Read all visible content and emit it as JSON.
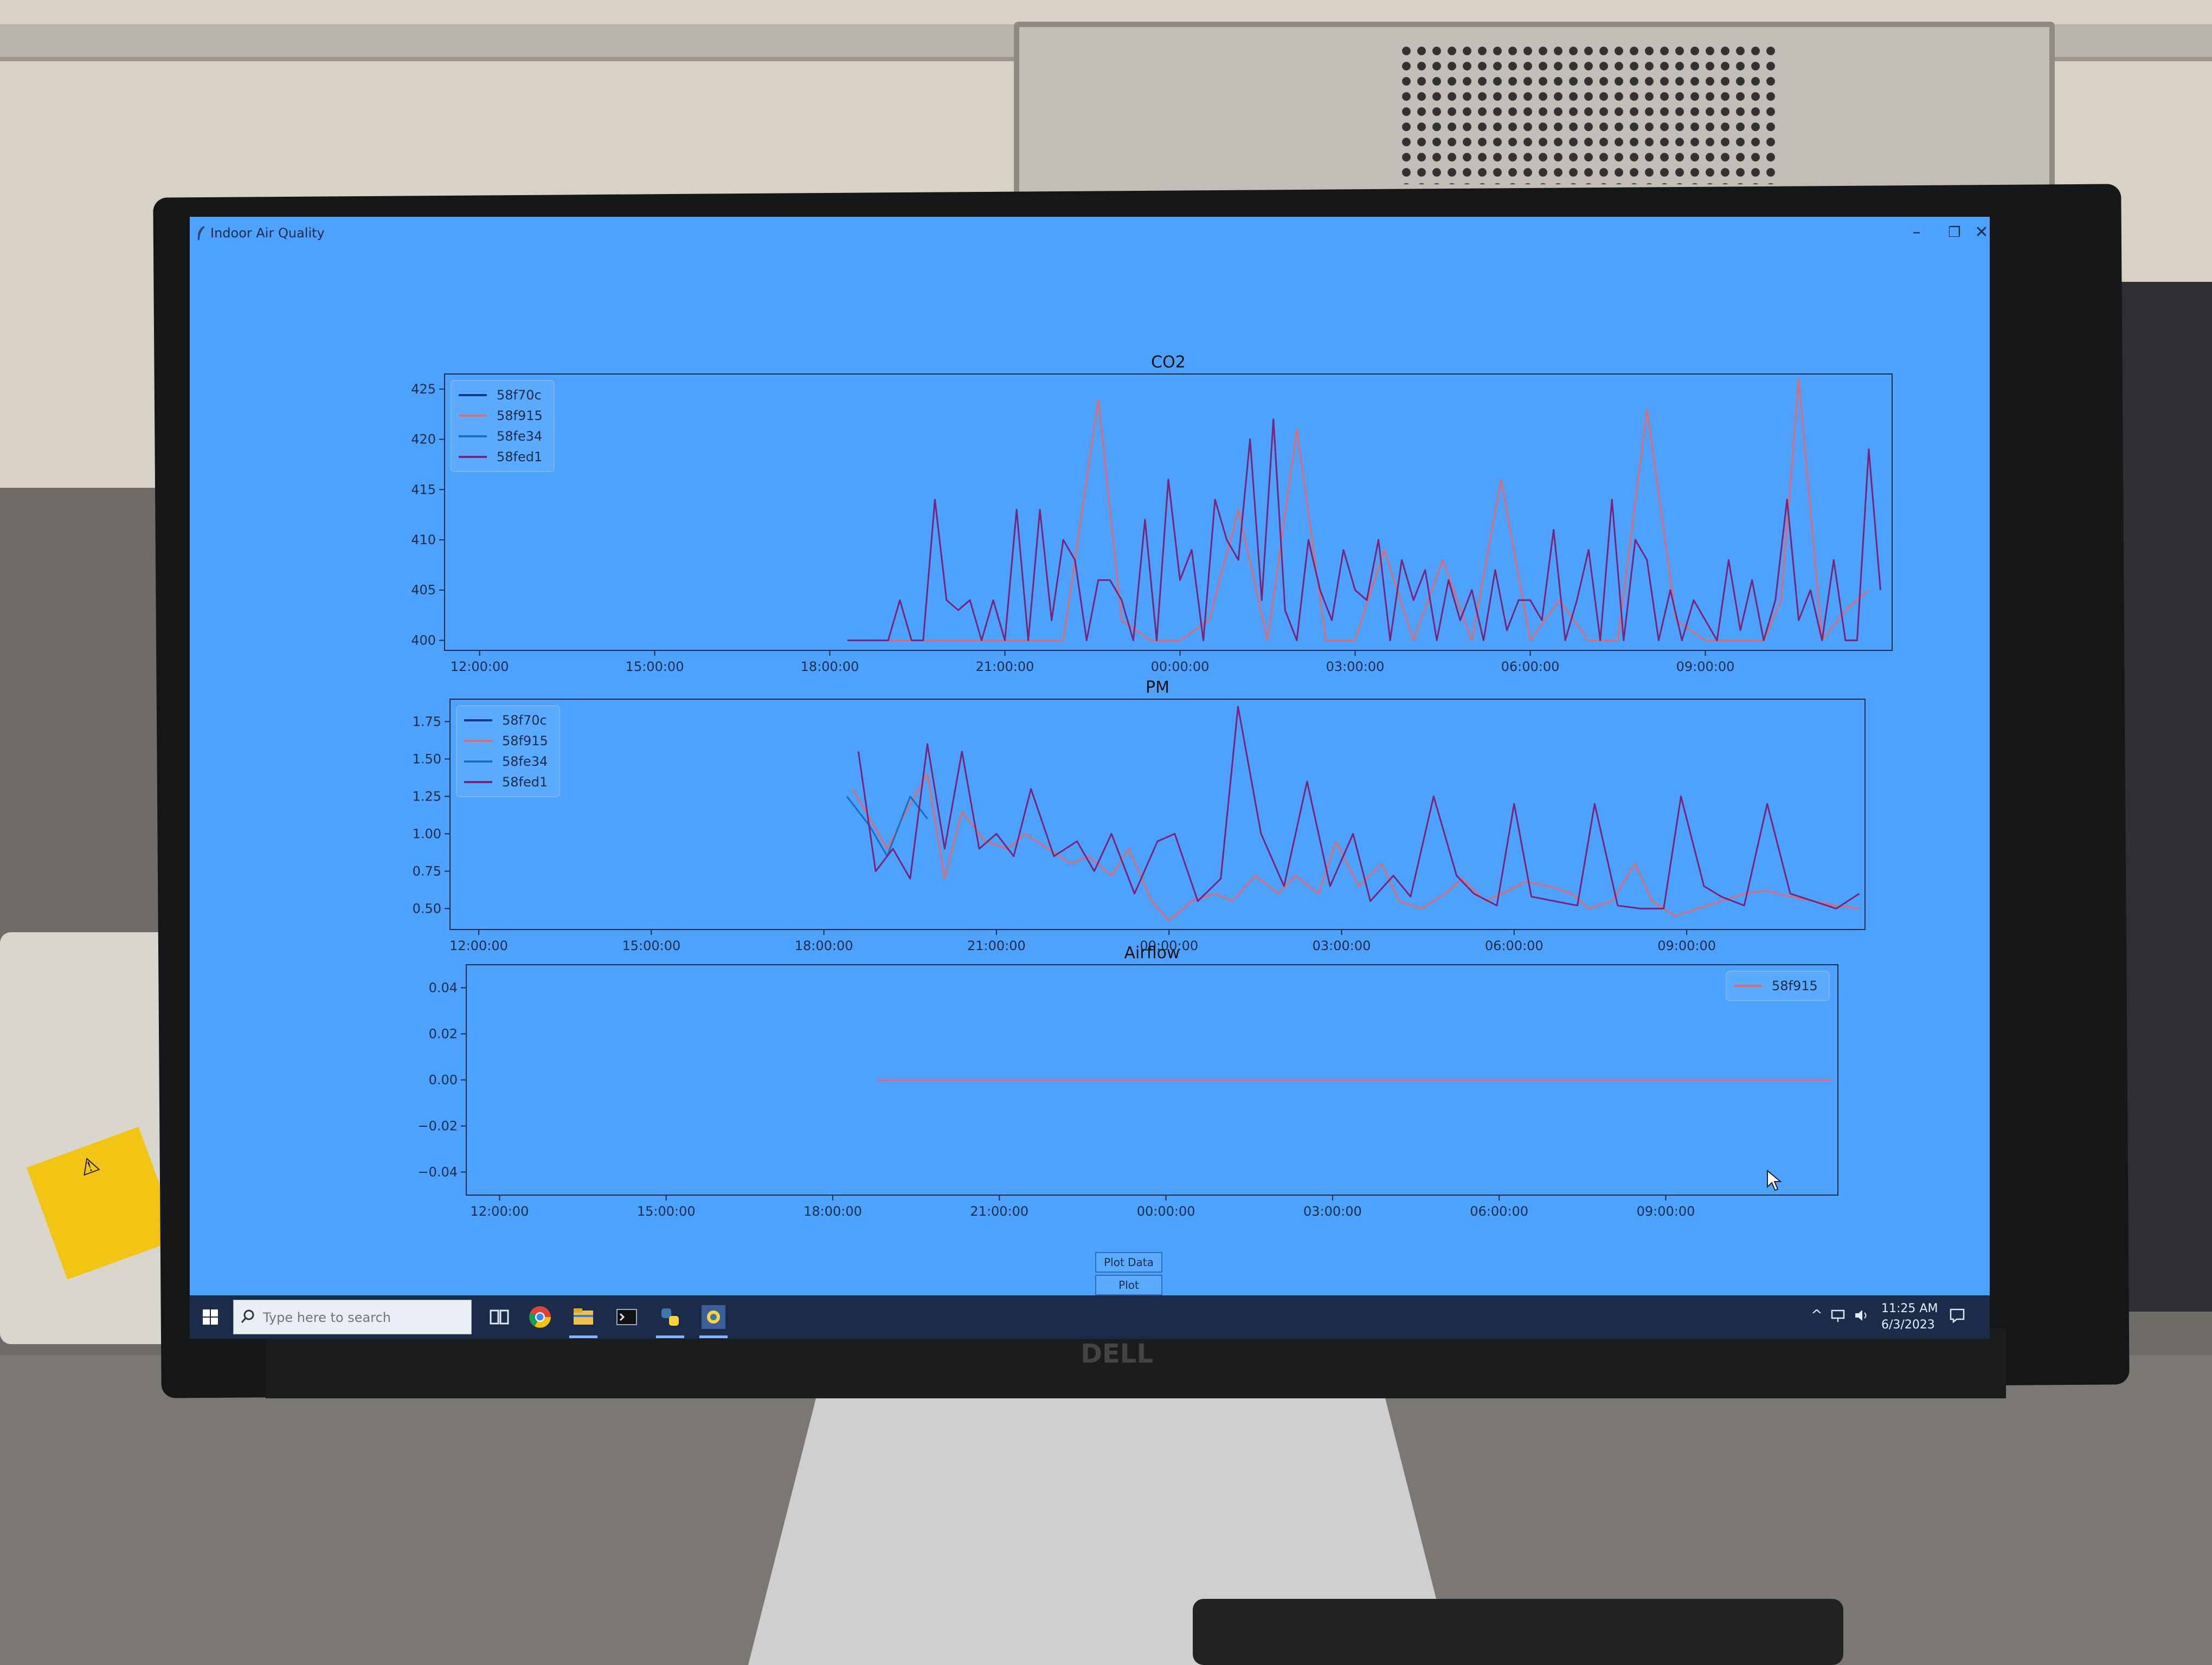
{
  "window": {
    "title": "Indoor Air Quality"
  },
  "buttons": {
    "plot_data": "Plot Data",
    "plot_example": "Plot Example"
  },
  "taskbar": {
    "search_placeholder": "Type here to search",
    "time": "11:25 AM",
    "date": "6/3/2023"
  },
  "colors": {
    "screen_bg": "#4da2ff",
    "58f70c": "#123a8c",
    "58f915": "#e06a72",
    "58fe34": "#1670b8",
    "58fed1": "#7a2478"
  },
  "chart_data": [
    {
      "type": "line",
      "title": "CO2",
      "legend_position": "top-left",
      "x_ticks": [
        "12:00:00",
        "15:00:00",
        "18:00:00",
        "21:00:00",
        "00:00:00",
        "03:00:00",
        "06:00:00",
        "09:00:00"
      ],
      "x_tick_hours": [
        0,
        3,
        6,
        9,
        12,
        15,
        18,
        21
      ],
      "xlim": [
        -0.6,
        24.2
      ],
      "yticks": [
        400,
        405,
        410,
        415,
        420,
        425
      ],
      "ylim": [
        399,
        426.5
      ],
      "series": [
        {
          "name": "58f70c",
          "x": [],
          "y": []
        },
        {
          "name": "58f915",
          "x": [
            6.3,
            7.0,
            7.5,
            8.0,
            8.5,
            9.0,
            9.5,
            10.0,
            10.6,
            11.0,
            11.5,
            12.0,
            12.5,
            13.0,
            13.5,
            14.0,
            14.5,
            15.0,
            15.5,
            16.0,
            16.5,
            17.0,
            17.5,
            18.0,
            18.5,
            19.0,
            19.5,
            20.0,
            20.5,
            21.0,
            21.5,
            22.0,
            22.3,
            22.6,
            23.0,
            23.4,
            23.8
          ],
          "y": [
            400,
            400,
            400,
            400,
            400,
            400,
            400,
            400,
            424,
            402,
            400,
            400,
            402,
            413,
            400,
            421,
            400,
            400,
            409,
            400,
            408,
            400,
            416,
            400,
            404,
            400,
            400,
            423,
            402,
            400,
            400,
            400,
            404,
            426,
            400,
            403,
            405
          ]
        },
        {
          "name": "58fe34",
          "x": [],
          "y": []
        },
        {
          "name": "58fed1",
          "x": [
            6.3,
            6.8,
            7.0,
            7.2,
            7.4,
            7.6,
            7.8,
            8.0,
            8.2,
            8.4,
            8.6,
            8.8,
            9.0,
            9.2,
            9.4,
            9.6,
            9.8,
            10.0,
            10.2,
            10.4,
            10.6,
            10.8,
            11.0,
            11.2,
            11.4,
            11.6,
            11.8,
            12.0,
            12.2,
            12.4,
            12.6,
            12.8,
            13.0,
            13.2,
            13.4,
            13.6,
            13.8,
            14.0,
            14.2,
            14.4,
            14.6,
            14.8,
            15.0,
            15.2,
            15.4,
            15.6,
            15.8,
            16.0,
            16.2,
            16.4,
            16.6,
            16.8,
            17.0,
            17.2,
            17.4,
            17.6,
            17.8,
            18.0,
            18.2,
            18.4,
            18.6,
            18.8,
            19.0,
            19.2,
            19.4,
            19.6,
            19.8,
            20.0,
            20.2,
            20.4,
            20.6,
            20.8,
            21.0,
            21.2,
            21.4,
            21.6,
            21.8,
            22.0,
            22.2,
            22.4,
            22.6,
            22.8,
            23.0,
            23.2,
            23.4,
            23.6,
            23.8,
            24.0
          ],
          "y": [
            400,
            400,
            400,
            404,
            400,
            400,
            414,
            404,
            403,
            404,
            400,
            404,
            400,
            413,
            400,
            413,
            402,
            410,
            408,
            400,
            406,
            406,
            404,
            400,
            412,
            400,
            416,
            406,
            409,
            400,
            414,
            410,
            408,
            420,
            404,
            422,
            403,
            400,
            410,
            405,
            402,
            409,
            405,
            404,
            410,
            400,
            408,
            404,
            407,
            400,
            406,
            402,
            405,
            400,
            407,
            401,
            404,
            404,
            402,
            411,
            400,
            404,
            409,
            400,
            414,
            400,
            410,
            408,
            400,
            405,
            400,
            404,
            402,
            400,
            408,
            401,
            406,
            400,
            404,
            414,
            402,
            405,
            400,
            408,
            400,
            400,
            419,
            405
          ]
        }
      ]
    },
    {
      "type": "line",
      "title": "PM",
      "legend_position": "top-left",
      "x_ticks": [
        "12:00:00",
        "15:00:00",
        "18:00:00",
        "21:00:00",
        "00:00:00",
        "03:00:00",
        "06:00:00",
        "09:00:00"
      ],
      "x_tick_hours": [
        0,
        3,
        6,
        9,
        12,
        15,
        18,
        21
      ],
      "xlim": [
        -0.5,
        24.1
      ],
      "yticks": [
        0.5,
        0.75,
        1.0,
        1.25,
        1.5,
        1.75
      ],
      "ylim": [
        0.36,
        1.9
      ],
      "series": [
        {
          "name": "58f70c",
          "x": [],
          "y": []
        },
        {
          "name": "58f915",
          "x": [
            6.5,
            6.8,
            7.1,
            7.5,
            7.8,
            8.1,
            8.4,
            8.8,
            9.2,
            9.5,
            9.9,
            10.3,
            10.6,
            11.0,
            11.3,
            11.7,
            12.0,
            12.4,
            12.8,
            13.1,
            13.5,
            13.9,
            14.2,
            14.6,
            14.9,
            15.3,
            15.7,
            16.0,
            16.4,
            16.8,
            17.1,
            17.5,
            17.9,
            18.2,
            18.6,
            19.0,
            19.3,
            19.7,
            20.1,
            20.4,
            20.8,
            21.2,
            21.6,
            22.0,
            22.4,
            22.8,
            23.2,
            23.6,
            24.0
          ],
          "y": [
            1.3,
            1.1,
            0.9,
            1.2,
            1.4,
            0.7,
            1.15,
            0.95,
            0.9,
            1.0,
            0.9,
            0.8,
            0.85,
            0.72,
            0.9,
            0.55,
            0.42,
            0.55,
            0.6,
            0.55,
            0.72,
            0.6,
            0.72,
            0.6,
            0.95,
            0.65,
            0.8,
            0.55,
            0.5,
            0.6,
            0.7,
            0.55,
            0.62,
            0.68,
            0.65,
            0.6,
            0.5,
            0.55,
            0.8,
            0.55,
            0.45,
            0.5,
            0.55,
            0.6,
            0.62,
            0.58,
            0.55,
            0.52,
            0.5
          ]
        },
        {
          "name": "58fe34",
          "x": [
            6.4,
            6.8,
            7.1,
            7.5,
            7.8
          ],
          "y": [
            1.25,
            1.05,
            0.85,
            1.25,
            1.1
          ]
        },
        {
          "name": "58fed1",
          "x": [
            6.6,
            6.9,
            7.2,
            7.5,
            7.8,
            8.1,
            8.4,
            8.7,
            9.0,
            9.3,
            9.6,
            10.0,
            10.4,
            10.7,
            11.0,
            11.4,
            11.8,
            12.1,
            12.5,
            12.9,
            13.2,
            13.6,
            14.0,
            14.4,
            14.8,
            15.2,
            15.5,
            15.9,
            16.2,
            16.6,
            17.0,
            17.3,
            17.7,
            18.0,
            18.3,
            18.7,
            19.1,
            19.4,
            19.8,
            20.2,
            20.6,
            20.9,
            21.3,
            21.6,
            22.0,
            22.4,
            22.8,
            23.2,
            23.6,
            24.0
          ],
          "y": [
            1.55,
            0.75,
            0.9,
            0.7,
            1.6,
            0.9,
            1.55,
            0.9,
            1.0,
            0.85,
            1.3,
            0.85,
            0.95,
            0.75,
            1.0,
            0.6,
            0.95,
            1.0,
            0.55,
            0.7,
            1.85,
            1.0,
            0.65,
            1.35,
            0.65,
            1.0,
            0.55,
            0.72,
            0.58,
            1.25,
            0.72,
            0.6,
            0.52,
            1.2,
            0.58,
            0.55,
            0.52,
            1.2,
            0.52,
            0.5,
            0.5,
            1.25,
            0.65,
            0.58,
            0.52,
            1.2,
            0.6,
            0.55,
            0.5,
            0.6
          ]
        }
      ]
    },
    {
      "type": "line",
      "title": "Airflow",
      "legend_position": "top-right",
      "x_ticks": [
        "12:00:00",
        "15:00:00",
        "18:00:00",
        "21:00:00",
        "00:00:00",
        "03:00:00",
        "06:00:00",
        "09:00:00"
      ],
      "x_tick_hours": [
        0,
        3,
        6,
        9,
        12,
        15,
        18,
        21
      ],
      "xlim": [
        -0.6,
        24.1
      ],
      "yticks": [
        -0.04,
        -0.02,
        0.0,
        0.02,
        0.04
      ],
      "ylim": [
        -0.05,
        0.05
      ],
      "series": [
        {
          "name": "58f915",
          "x": [
            6.8,
            24.0
          ],
          "y": [
            0.0,
            0.0
          ]
        }
      ]
    }
  ]
}
